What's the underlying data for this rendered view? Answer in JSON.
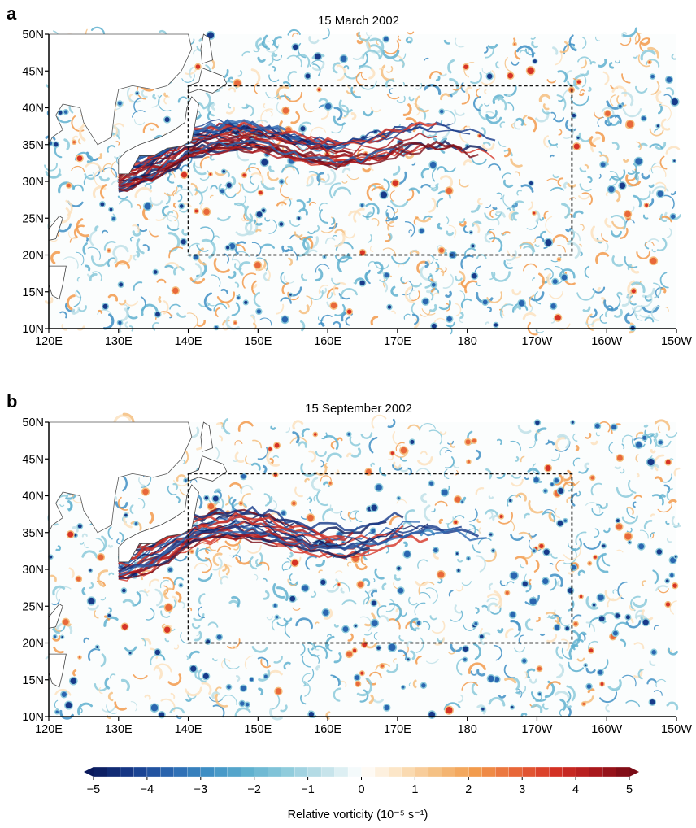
{
  "panels": [
    {
      "label": "a",
      "title": "15 March 2002",
      "y_ticks": [
        "50N",
        "45N",
        "40N",
        "35N",
        "30N",
        "25N",
        "20N",
        "15N",
        "10N"
      ],
      "x_ticks": [
        "120E",
        "130E",
        "140E",
        "150E",
        "160E",
        "170E",
        "180",
        "170W",
        "160W",
        "150W"
      ],
      "box": {
        "lon_min": 140,
        "lon_max": 195,
        "lat_min": 20,
        "lat_max": 43
      },
      "seed": 11,
      "eddy_density": "high"
    },
    {
      "label": "b",
      "title": "15 September 2002",
      "y_ticks": [
        "50N",
        "45N",
        "40N",
        "35N",
        "30N",
        "25N",
        "20N",
        "15N",
        "10N"
      ],
      "x_ticks": [
        "120E",
        "130E",
        "140E",
        "150E",
        "160E",
        "170E",
        "180",
        "170W",
        "160W",
        "150W"
      ],
      "box": {
        "lon_min": 140,
        "lon_max": 195,
        "lat_min": 20,
        "lat_max": 43
      },
      "seed": 29,
      "eddy_density": "medium"
    }
  ],
  "colorbar": {
    "ticks": [
      "−5",
      "−4",
      "−3",
      "−2",
      "−1",
      "0",
      "1",
      "2",
      "3",
      "4",
      "5"
    ],
    "label": "Relative vorticity (10⁻⁵ s⁻¹)",
    "min": -5,
    "max": 5,
    "colors": [
      "#0b1a5c",
      "#173a8a",
      "#2a66b0",
      "#3f8fc4",
      "#5fb0cf",
      "#8ccadb",
      "#bfe0e8",
      "#ffffff",
      "#fbe2c0",
      "#f5be7f",
      "#f29a4c",
      "#e8683a",
      "#d63325",
      "#b01a1e",
      "#7a0c16"
    ]
  }
}
